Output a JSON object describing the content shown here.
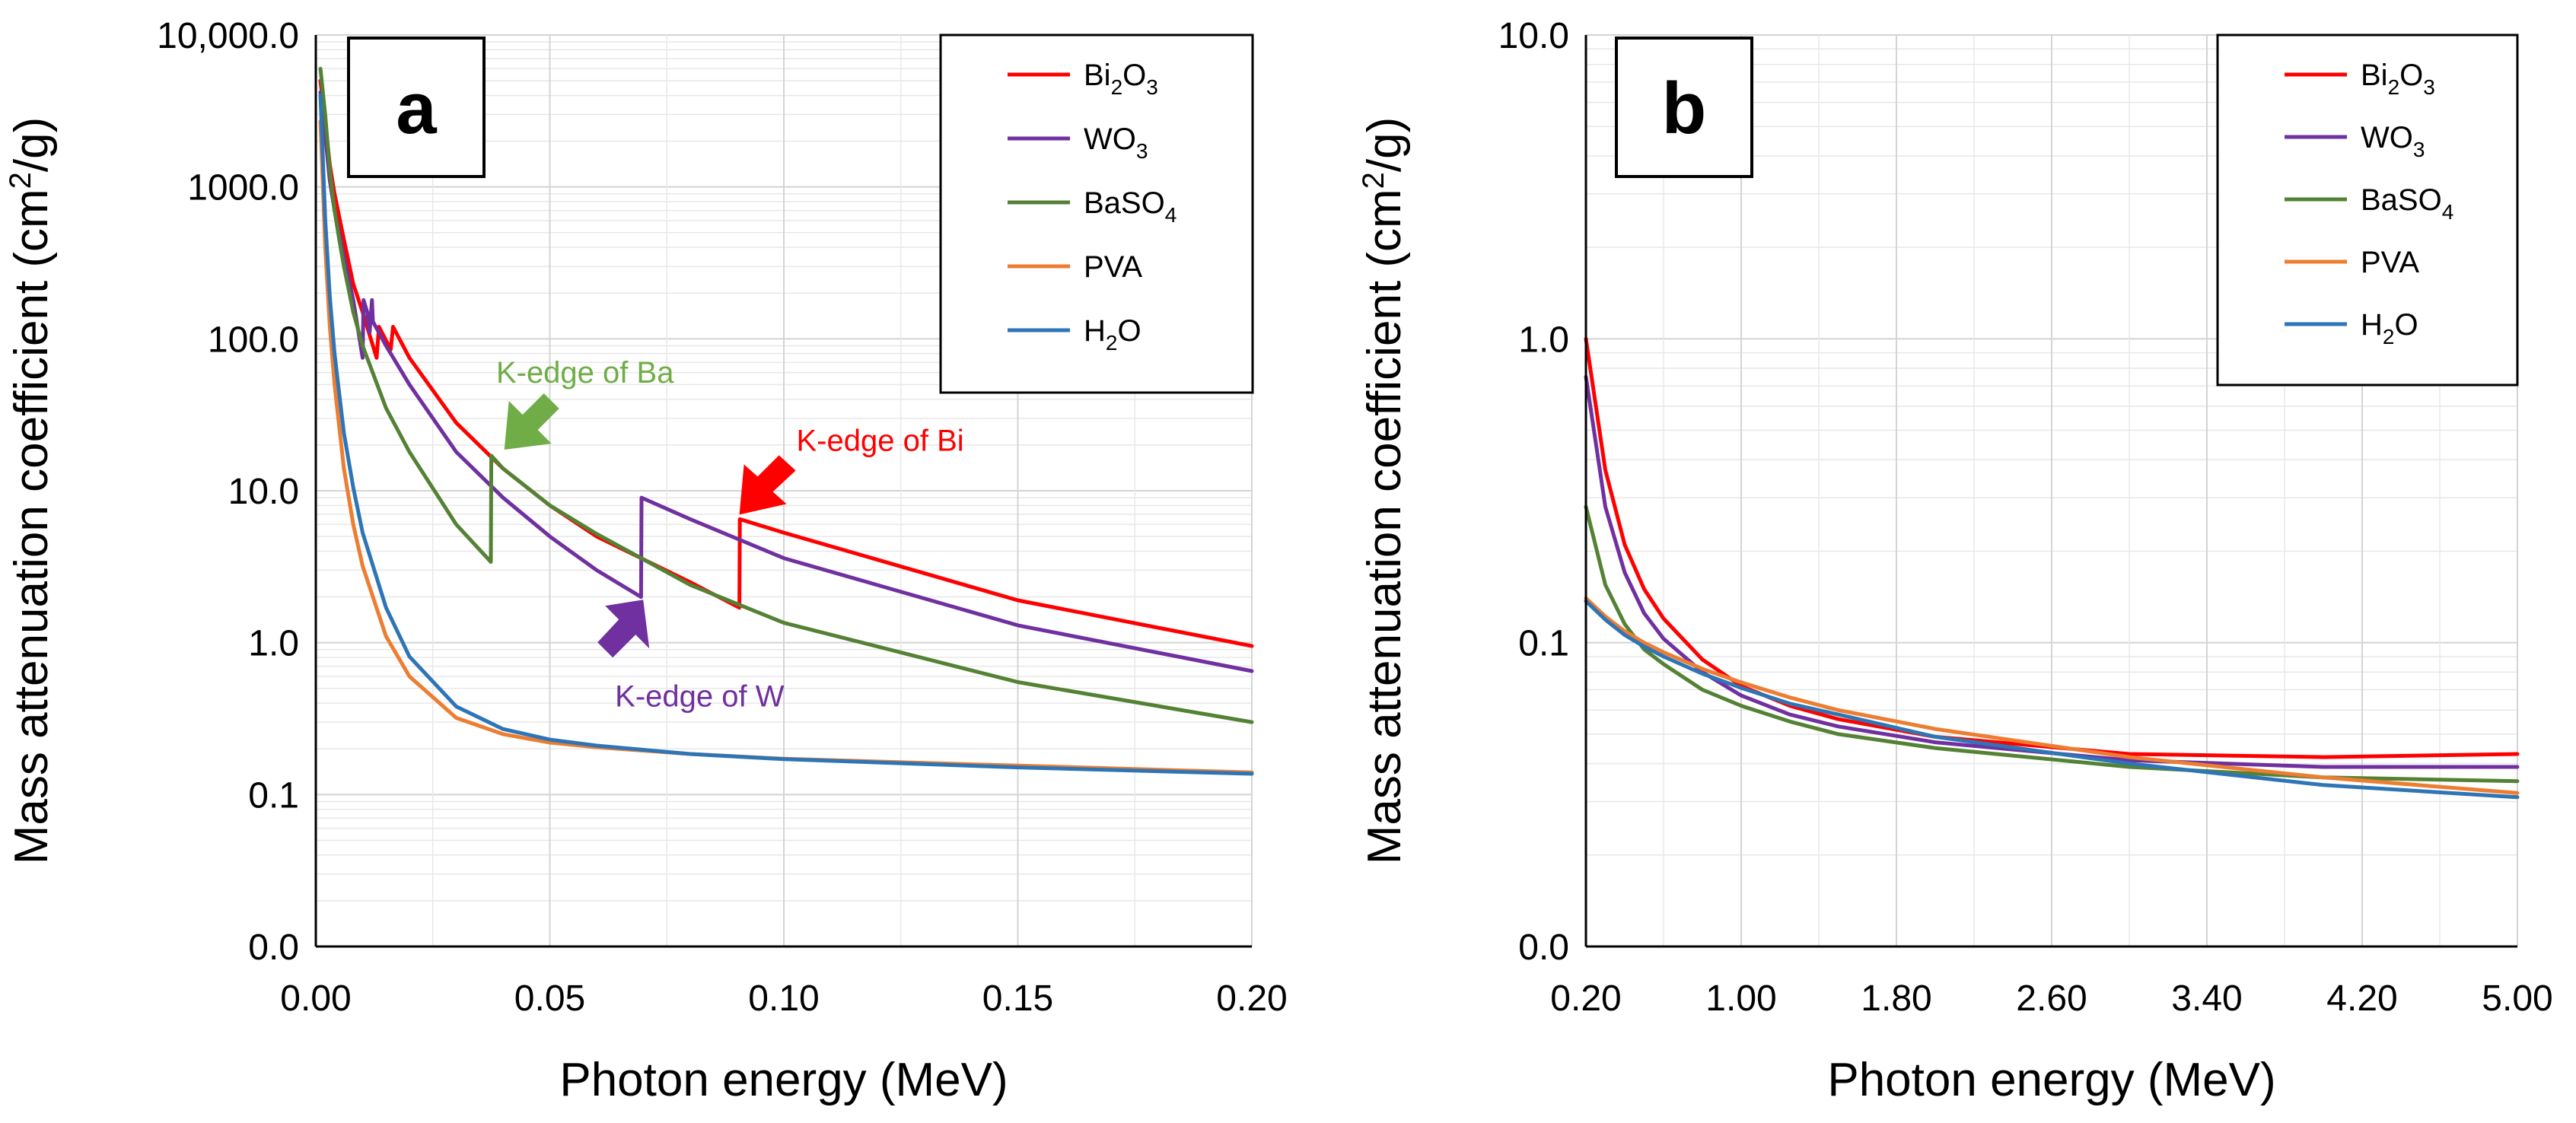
{
  "chart_data": [
    {
      "type": "line",
      "panel_label": "a",
      "title": "",
      "xlabel": "Photon energy (MeV)",
      "ylabel": "Mass attenuation coefficient (cm²/g)",
      "ylabel_parts": {
        "pre": "Mass attenuation coefficient (cm",
        "sup": "2",
        "post": "/g)"
      },
      "xscale": "linear",
      "yscale": "log",
      "xlim": [
        0,
        0.2
      ],
      "ylim": [
        0.01,
        10000
      ],
      "x_ticks": [
        0,
        0.05,
        0.1,
        0.15,
        0.2
      ],
      "x_tick_labels": [
        "0.00",
        "0.05",
        "0.10",
        "0.15",
        "0.20"
      ],
      "y_ticks": [
        0.01,
        0.1,
        1,
        10,
        100,
        1000,
        10000
      ],
      "y_tick_labels": [
        "0.0",
        "0.1",
        "1.0",
        "10.0",
        "100.0",
        "1000.0",
        "10,000.0"
      ],
      "grid": true,
      "legend_position": "top-right",
      "series": [
        {
          "name": "Bi2O3",
          "color": "#ff0000",
          "x": [
            0.001,
            0.002,
            0.003,
            0.004,
            0.006,
            0.008,
            0.01,
            0.013,
            0.0135,
            0.016,
            0.0165,
            0.02,
            0.03,
            0.04,
            0.05,
            0.06,
            0.08,
            0.0905,
            0.0906,
            0.1,
            0.15,
            0.2
          ],
          "y": [
            5000,
            2700,
            1400,
            900,
            450,
            230,
            150,
            75,
            120,
            85,
            120,
            75,
            28,
            14,
            8,
            5,
            2.5,
            1.7,
            6.5,
            5.3,
            1.9,
            0.95
          ]
        },
        {
          "name": "WO3",
          "color": "#7030a0",
          "x": [
            0.001,
            0.002,
            0.003,
            0.004,
            0.006,
            0.008,
            0.01,
            0.0102,
            0.011,
            0.0115,
            0.012,
            0.0122,
            0.015,
            0.02,
            0.03,
            0.04,
            0.05,
            0.06,
            0.0695,
            0.0696,
            0.08,
            0.1,
            0.15,
            0.2
          ],
          "y": [
            4200,
            2200,
            1100,
            700,
            350,
            180,
            75,
            180,
            150,
            110,
            180,
            130,
            90,
            50,
            18,
            9,
            5,
            3,
            2,
            9,
            6.5,
            3.6,
            1.3,
            0.65
          ]
        },
        {
          "name": "BaSO4",
          "color": "#548235",
          "x": [
            0.001,
            0.002,
            0.003,
            0.004,
            0.005,
            0.006,
            0.008,
            0.01,
            0.015,
            0.02,
            0.03,
            0.0374,
            0.0375,
            0.04,
            0.05,
            0.06,
            0.08,
            0.1,
            0.15,
            0.2
          ],
          "y": [
            6000,
            3000,
            1300,
            700,
            450,
            300,
            150,
            90,
            35,
            18,
            6,
            3.4,
            17,
            14,
            8,
            5.2,
            2.4,
            1.35,
            0.55,
            0.3
          ]
        },
        {
          "name": "PVA",
          "color": "#ed7d31",
          "x": [
            0.001,
            0.002,
            0.003,
            0.004,
            0.006,
            0.008,
            0.01,
            0.015,
            0.02,
            0.03,
            0.04,
            0.05,
            0.06,
            0.08,
            0.1,
            0.15,
            0.2
          ],
          "y": [
            2700,
            400,
            120,
            50,
            14,
            6,
            3.2,
            1.1,
            0.6,
            0.32,
            0.25,
            0.22,
            0.205,
            0.185,
            0.172,
            0.155,
            0.14
          ]
        },
        {
          "name": "H2O",
          "color": "#2e75b6",
          "x": [
            0.001,
            0.002,
            0.003,
            0.004,
            0.006,
            0.008,
            0.01,
            0.015,
            0.02,
            0.03,
            0.04,
            0.05,
            0.06,
            0.08,
            0.1,
            0.15,
            0.2
          ],
          "y": [
            4000,
            620,
            190,
            80,
            24,
            10.5,
            5.3,
            1.7,
            0.81,
            0.38,
            0.27,
            0.23,
            0.21,
            0.185,
            0.171,
            0.151,
            0.137
          ]
        }
      ],
      "annotations": [
        {
          "text": "K-edge of Ba",
          "color": "#70ad47",
          "x": 0.038,
          "y": 17
        },
        {
          "text": "K-edge of Bi",
          "color": "#ff0000",
          "x": 0.0905,
          "y": 6.5
        },
        {
          "text": "K-edge of W",
          "color": "#7030a0",
          "x": 0.0725,
          "y": 2.1
        }
      ]
    },
    {
      "type": "line",
      "panel_label": "b",
      "title": "",
      "xlabel": "Photon energy (MeV)",
      "ylabel": "Mass attenuation coefficient (cm²/g)",
      "ylabel_parts": {
        "pre": "Mass attenuation coefficient (cm",
        "sup": "2",
        "post": "/g)"
      },
      "xscale": "linear",
      "yscale": "log",
      "xlim": [
        0.2,
        5.0
      ],
      "ylim": [
        0.01,
        10
      ],
      "x_ticks": [
        0.2,
        1.0,
        1.8,
        2.6,
        3.4,
        4.2,
        5.0
      ],
      "x_tick_labels": [
        "0.20",
        "1.00",
        "1.80",
        "2.60",
        "3.40",
        "4.20",
        "5.00"
      ],
      "y_ticks": [
        0.01,
        0.1,
        1,
        10
      ],
      "y_tick_labels": [
        "0.0",
        "0.1",
        "1.0",
        "10.0"
      ],
      "grid": true,
      "legend_position": "top-right",
      "series": [
        {
          "name": "Bi2O3",
          "color": "#ff0000",
          "x": [
            0.2,
            0.3,
            0.4,
            0.5,
            0.6,
            0.8,
            1.0,
            1.25,
            1.5,
            2.0,
            3.0,
            4.0,
            5.0
          ],
          "y": [
            1.0,
            0.37,
            0.21,
            0.15,
            0.12,
            0.088,
            0.072,
            0.062,
            0.056,
            0.049,
            0.043,
            0.042,
            0.043
          ]
        },
        {
          "name": "WO3",
          "color": "#7030a0",
          "x": [
            0.2,
            0.3,
            0.4,
            0.5,
            0.6,
            0.8,
            1.0,
            1.25,
            1.5,
            2.0,
            3.0,
            4.0,
            5.0
          ],
          "y": [
            0.75,
            0.28,
            0.17,
            0.125,
            0.103,
            0.08,
            0.067,
            0.058,
            0.053,
            0.047,
            0.041,
            0.039,
            0.039
          ]
        },
        {
          "name": "BaSO4",
          "color": "#548235",
          "x": [
            0.2,
            0.3,
            0.4,
            0.5,
            0.6,
            0.8,
            1.0,
            1.25,
            1.5,
            2.0,
            3.0,
            4.0,
            5.0
          ],
          "y": [
            0.28,
            0.155,
            0.115,
            0.095,
            0.085,
            0.07,
            0.062,
            0.055,
            0.05,
            0.045,
            0.039,
            0.036,
            0.035
          ]
        },
        {
          "name": "PVA",
          "color": "#ed7d31",
          "x": [
            0.2,
            0.3,
            0.4,
            0.5,
            0.6,
            0.8,
            1.0,
            1.25,
            1.5,
            2.0,
            3.0,
            4.0,
            5.0
          ],
          "y": [
            0.14,
            0.122,
            0.109,
            0.1,
            0.093,
            0.082,
            0.074,
            0.066,
            0.06,
            0.052,
            0.042,
            0.036,
            0.032
          ]
        },
        {
          "name": "H2O",
          "color": "#2e75b6",
          "x": [
            0.2,
            0.3,
            0.4,
            0.5,
            0.6,
            0.8,
            1.0,
            1.25,
            1.5,
            2.0,
            3.0,
            4.0,
            5.0
          ],
          "y": [
            0.137,
            0.119,
            0.106,
            0.097,
            0.09,
            0.079,
            0.071,
            0.063,
            0.058,
            0.049,
            0.04,
            0.034,
            0.031
          ]
        }
      ],
      "annotations": []
    }
  ],
  "legend_labels": [
    {
      "base": "Bi",
      "sub1": "2",
      "mid": "O",
      "sub2": "3",
      "color": "#ff0000"
    },
    {
      "base": "WO",
      "sub1": "3",
      "mid": "",
      "sub2": "",
      "color": "#7030a0"
    },
    {
      "base": "BaSO",
      "sub1": "4",
      "mid": "",
      "sub2": "",
      "color": "#548235"
    },
    {
      "base": "PVA",
      "sub1": "",
      "mid": "",
      "sub2": "",
      "color": "#ed7d31"
    },
    {
      "base": "H",
      "sub1": "2",
      "mid": "O",
      "sub2": "",
      "color": "#2e75b6"
    }
  ]
}
